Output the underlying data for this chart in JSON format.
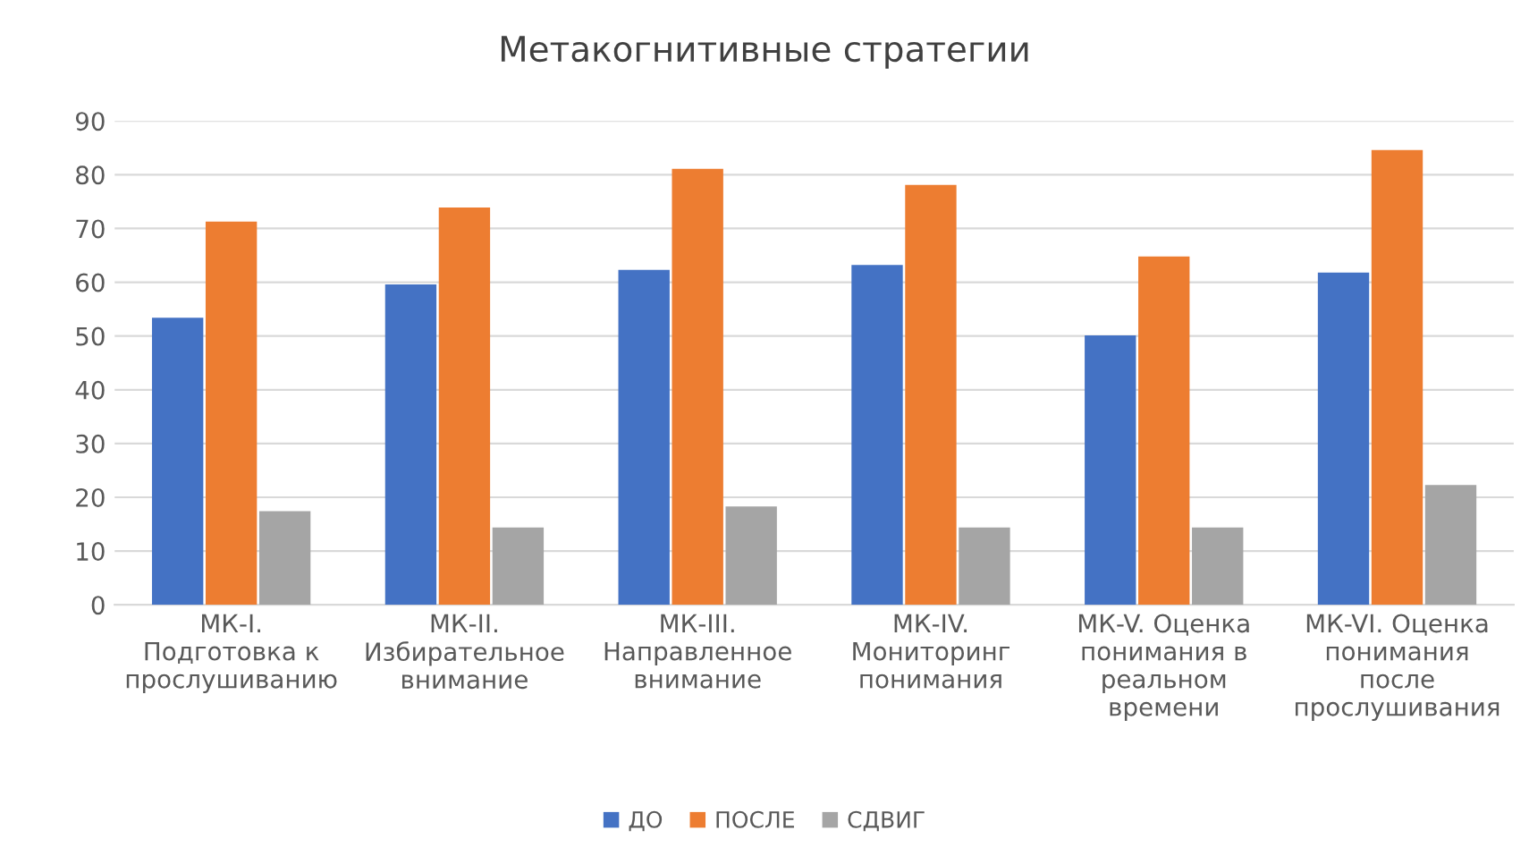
{
  "chart_data": {
    "type": "bar",
    "title": "Метакогнитивные стратегии",
    "categories": [
      "МК-I.\nПодготовка к\nпрослушиванию",
      "МК-II.\nИзбирательное\nвнимание",
      "МК-III.\nНаправленное\nвнимание",
      "МК-IV.\nМониторинг\nпонимания",
      "МК-V. Оценка\nпонимания в\nреальном\nвремени",
      "МК-VI. Оценка\nпонимания\nпосле\nпрослушивания"
    ],
    "series": [
      {
        "name": "ДО",
        "color": "#4472c4",
        "values": [
          53.4,
          59.6,
          62.3,
          63.2,
          50.1,
          61.8
        ]
      },
      {
        "name": "ПОСЛЕ",
        "color": "#ed7d31",
        "values": [
          71.3,
          73.9,
          81.1,
          78.1,
          64.8,
          84.6
        ]
      },
      {
        "name": "СДВИГ",
        "color": "#a5a5a5",
        "values": [
          17.4,
          14.4,
          18.3,
          14.4,
          14.4,
          22.3
        ]
      }
    ],
    "ylim": [
      0,
      90
    ],
    "yticks": [
      0,
      10,
      20,
      30,
      40,
      50,
      60,
      70,
      80,
      90
    ],
    "grid": "y",
    "legend": "bottom"
  }
}
